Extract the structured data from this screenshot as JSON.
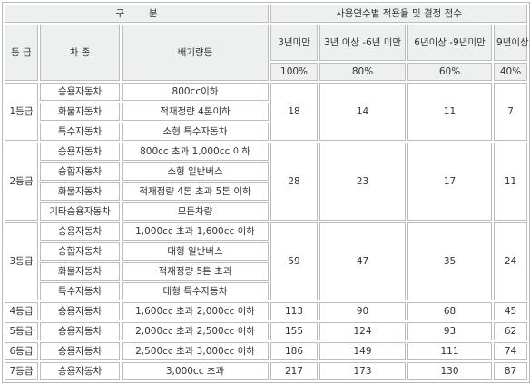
{
  "header": {
    "classification": "구        분",
    "applied_rate_title": "사용연수별 적용율 및 결정 점수",
    "grade": "등 급",
    "vehicle_type": "차 종",
    "displacement": "배기량등",
    "periods": [
      {
        "label": "3년미만",
        "rate": "100%"
      },
      {
        "label": "3년 이상 -6년 미만",
        "rate": "80%"
      },
      {
        "label": "6년이상 -9년미만",
        "rate": "60%"
      },
      {
        "label": "9년이상",
        "rate": "40%"
      }
    ]
  },
  "groups": [
    {
      "grade": "1등급",
      "scores": [
        "18",
        "14",
        "11",
        "7"
      ],
      "rows": [
        {
          "vehicle": "승용자동차",
          "spec": "800cc이하"
        },
        {
          "vehicle": "화물자동차",
          "spec": "적재정량 4톤이하"
        },
        {
          "vehicle": "특수자동차",
          "spec": "소형 특수자동차"
        }
      ]
    },
    {
      "grade": "2등급",
      "scores": [
        "28",
        "23",
        "17",
        "11"
      ],
      "rows": [
        {
          "vehicle": "승용자동차",
          "spec": "800cc 초과 1,000cc 이하"
        },
        {
          "vehicle": "승합자동차",
          "spec": "소형 일반버스"
        },
        {
          "vehicle": "화물자동차",
          "spec": "적재정량 4톤 초과 5톤 이하"
        },
        {
          "vehicle": "기타승용자동차",
          "spec": "모든차량"
        }
      ]
    },
    {
      "grade": "3등급",
      "scores": [
        "59",
        "47",
        "35",
        "24"
      ],
      "rows": [
        {
          "vehicle": "승용자동차",
          "spec": "1,000cc 초과 1,600cc 이하"
        },
        {
          "vehicle": "승합자동차",
          "spec": "대형 일반버스"
        },
        {
          "vehicle": "화물자동차",
          "spec": "적재정량 5톤 초과"
        },
        {
          "vehicle": "특수자동차",
          "spec": "대형 특수자동차"
        }
      ]
    },
    {
      "grade": "4등급",
      "scores": [
        "113",
        "90",
        "68",
        "45"
      ],
      "rows": [
        {
          "vehicle": "승용자동차",
          "spec": "1,600cc 초과 2,000cc 이하"
        }
      ]
    },
    {
      "grade": "5등급",
      "scores": [
        "155",
        "124",
        "93",
        "62"
      ],
      "rows": [
        {
          "vehicle": "승용자동차",
          "spec": "2,000cc 초과 2,500cc 이하"
        }
      ]
    },
    {
      "grade": "6등급",
      "scores": [
        "186",
        "149",
        "111",
        "74"
      ],
      "rows": [
        {
          "vehicle": "승용자동차",
          "spec": "2,500cc 초과 3,000cc 이하"
        }
      ]
    },
    {
      "grade": "7등급",
      "scores": [
        "217",
        "173",
        "130",
        "87"
      ],
      "rows": [
        {
          "vehicle": "승용자동차",
          "spec": "3,000cc 초과"
        }
      ]
    }
  ]
}
